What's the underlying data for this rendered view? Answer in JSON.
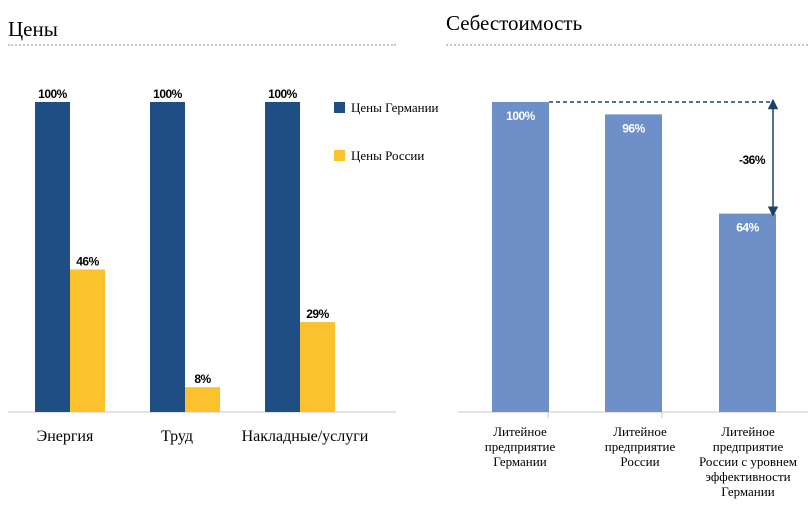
{
  "left": {
    "title": "Цены"
  },
  "right": {
    "title": "Себестоимость",
    "diff_label": "-36%"
  },
  "colors": {
    "germany": "#1f4e84",
    "russia": "#fcc22d",
    "cost": "#6f8fc9",
    "arrow": "#1f3f6e"
  },
  "chart_data": [
    {
      "type": "bar",
      "title": "Цены",
      "categories": [
        "Энергия",
        "Труд",
        "Накладные/услуги"
      ],
      "series": [
        {
          "name": "Цены Германии",
          "values": [
            100,
            100,
            100
          ]
        },
        {
          "name": "Цены России",
          "values": [
            46,
            8,
            29
          ]
        }
      ],
      "data_labels": [
        [
          "100%",
          "100%",
          "100%"
        ],
        [
          "46%",
          "8%",
          "29%"
        ]
      ],
      "ylim": [
        0,
        100
      ],
      "legend": "right"
    },
    {
      "type": "bar",
      "title": "Себестоимость",
      "categories": [
        [
          "Литейное",
          "предприятие",
          "Германии"
        ],
        [
          "Литейное",
          "предприятие",
          "России"
        ],
        [
          "Литейное",
          "предприятие",
          "России с уровнем",
          "эффективности",
          "Германии"
        ]
      ],
      "values": [
        100,
        96,
        64
      ],
      "data_labels": [
        "100%",
        "96%",
        "64%"
      ],
      "ylim": [
        0,
        100
      ],
      "annotation": "-36%"
    }
  ]
}
